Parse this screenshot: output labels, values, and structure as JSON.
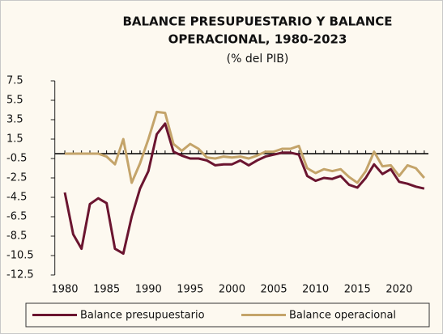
{
  "chart_data": {
    "type": "line",
    "title": [
      "BALANCE PRESUPUESTARIO Y BALANCE",
      "OPERACIONAL, 1980-2023"
    ],
    "subtitle": "(% del PIB)",
    "x": [
      1980,
      1981,
      1982,
      1983,
      1984,
      1985,
      1986,
      1987,
      1988,
      1989,
      1990,
      1991,
      1992,
      1993,
      1994,
      1995,
      1996,
      1997,
      1998,
      1999,
      2000,
      2001,
      2002,
      2003,
      2004,
      2005,
      2006,
      2007,
      2008,
      2009,
      2010,
      2011,
      2012,
      2013,
      2014,
      2015,
      2016,
      2017,
      2018,
      2019,
      2020,
      2021,
      2022,
      2023
    ],
    "series": [
      {
        "name": "Balance presupuestario",
        "color": "#6b1530",
        "values": [
          -4.0,
          -8.3,
          -9.8,
          -5.2,
          -4.6,
          -5.1,
          -9.8,
          -10.3,
          -6.5,
          -3.6,
          -1.8,
          2.0,
          3.1,
          0.2,
          -0.2,
          -0.5,
          -0.5,
          -0.7,
          -1.2,
          -1.1,
          -1.1,
          -0.7,
          -1.2,
          -0.7,
          -0.3,
          -0.1,
          0.1,
          0.1,
          -0.1,
          -2.3,
          -2.8,
          -2.5,
          -2.6,
          -2.3,
          -3.2,
          -3.5,
          -2.5,
          -1.1,
          -2.1,
          -1.6,
          -2.9,
          -3.1,
          -3.4,
          -3.6
        ]
      },
      {
        "name": "Balance operacional",
        "color": "#c4a46a",
        "values": [
          0.0,
          0.0,
          0.0,
          0.0,
          0.0,
          -0.3,
          -1.1,
          1.5,
          -3.0,
          -1.0,
          1.5,
          4.3,
          4.2,
          1.0,
          0.3,
          1.0,
          0.5,
          -0.4,
          -0.5,
          -0.3,
          -0.4,
          -0.3,
          -0.5,
          -0.2,
          0.2,
          0.2,
          0.5,
          0.5,
          0.8,
          -1.5,
          -2.0,
          -1.6,
          -1.8,
          -1.6,
          -2.4,
          -3.0,
          -1.8,
          0.2,
          -1.3,
          -1.2,
          -2.3,
          -1.2,
          -1.5,
          -2.5
        ]
      }
    ],
    "xlim": [
      1979,
      2023.5
    ],
    "xticks": [
      1980,
      1985,
      1990,
      1995,
      2000,
      2005,
      2010,
      2015,
      2020
    ],
    "ylim": [
      -12.5,
      7.5
    ],
    "yticks": [
      7.5,
      5.5,
      3.5,
      1.5,
      -0.5,
      -2.5,
      -4.5,
      -6.5,
      -8.5,
      -10.5,
      -12.5
    ],
    "legend": "bottom"
  }
}
